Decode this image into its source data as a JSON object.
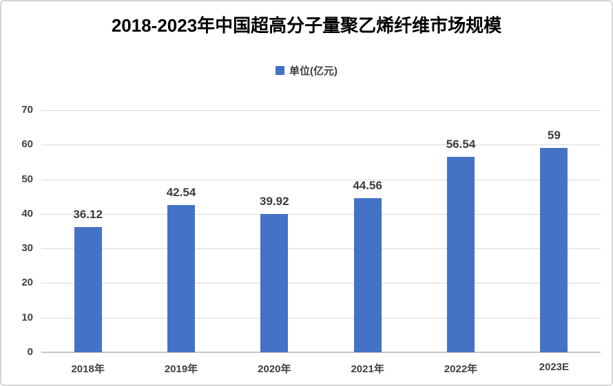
{
  "chart_data": {
    "type": "bar",
    "title": "2018-2023年中国超高分子量聚乙烯纤维市场规模",
    "legend": {
      "label": "单位(亿元)",
      "swatch_color": "#4472c4",
      "position": "top"
    },
    "categories": [
      "2018年",
      "2019年",
      "2020年",
      "2021年",
      "2022年",
      "2023E"
    ],
    "values": [
      36.12,
      42.54,
      39.92,
      44.56,
      56.54,
      59
    ],
    "value_labels": [
      "36.12",
      "42.54",
      "39.92",
      "44.56",
      "56.54",
      "59"
    ],
    "xlabel": "",
    "ylabel": "",
    "ylim": [
      0,
      70
    ],
    "y_ticks": [
      0,
      10,
      20,
      30,
      40,
      50,
      60,
      70
    ],
    "grid": true,
    "bar_color": "#4472c4"
  },
  "style": {
    "gridline_color": "#d9d9d9",
    "axis_line_color": "#c6c6c6",
    "axis_text_color": "#404040",
    "title_color": "#000000",
    "frame_border_color": "#d5d5d5",
    "background": "#ffffff"
  }
}
